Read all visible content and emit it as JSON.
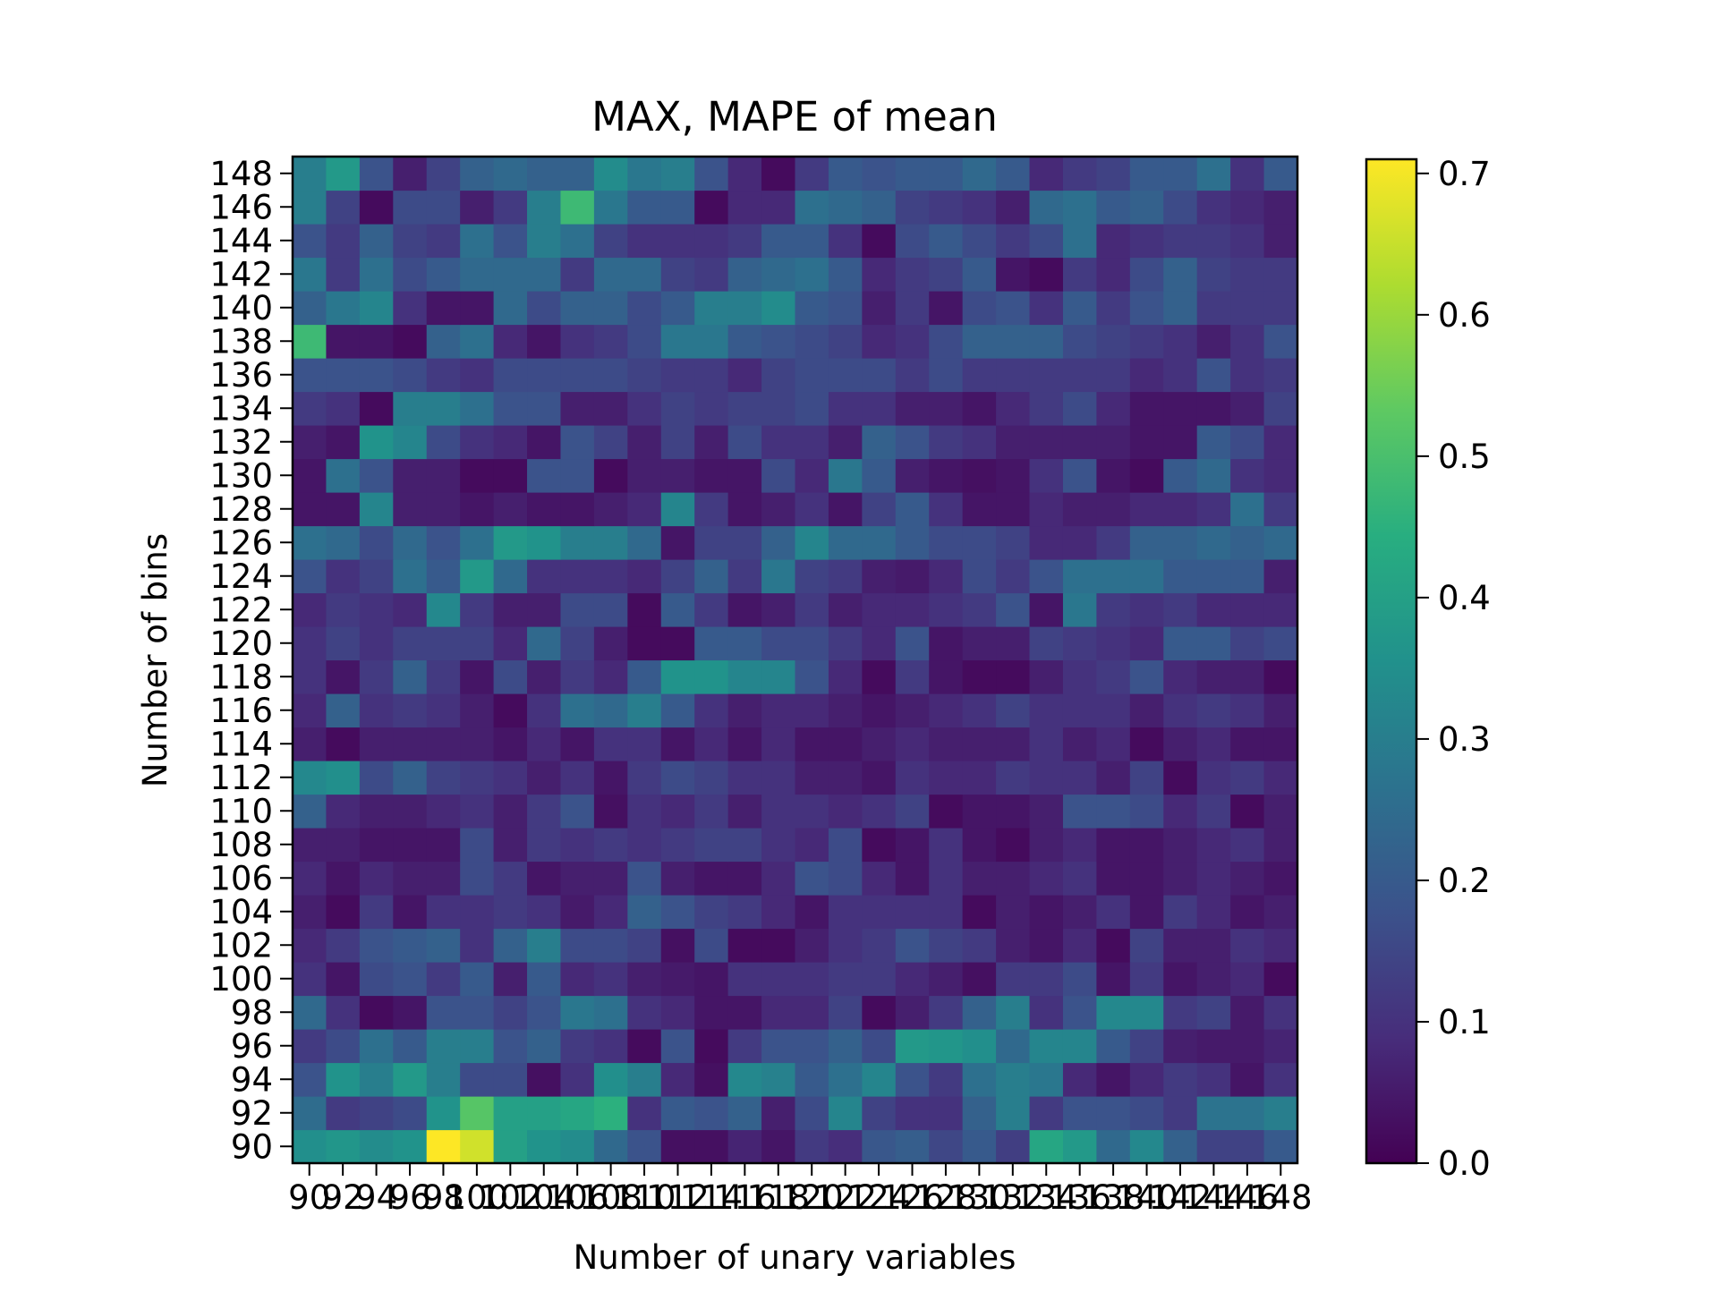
{
  "chart_data": {
    "type": "heatmap",
    "title": "MAX, MAPE of mean",
    "xlabel": "Number of unary variables",
    "ylabel": "Number of bins",
    "x": [
      90,
      92,
      94,
      96,
      98,
      100,
      102,
      104,
      106,
      108,
      110,
      112,
      114,
      116,
      118,
      120,
      122,
      124,
      126,
      128,
      130,
      132,
      134,
      136,
      138,
      140,
      142,
      144,
      146,
      148
    ],
    "y": [
      90,
      92,
      94,
      96,
      98,
      100,
      102,
      104,
      106,
      108,
      110,
      112,
      114,
      116,
      118,
      120,
      122,
      124,
      126,
      128,
      130,
      132,
      134,
      136,
      138,
      140,
      142,
      144,
      146,
      148
    ],
    "colorbar": {
      "min": 0.0,
      "max": 0.71,
      "ticks": [
        "0.0",
        "0.1",
        "0.2",
        "0.3",
        "0.4",
        "0.5",
        "0.6",
        "0.7"
      ],
      "colormap": "viridis"
    },
    "values": [
      [
        0.35,
        0.37,
        0.34,
        0.36,
        0.71,
        0.66,
        0.4,
        0.36,
        0.34,
        0.24,
        0.18,
        0.03,
        0.03,
        0.07,
        0.04,
        0.12,
        0.09,
        0.19,
        0.21,
        0.15,
        0.2,
        0.13,
        0.42,
        0.38,
        0.24,
        0.33,
        0.22,
        0.14,
        0.14,
        0.2
      ],
      [
        0.25,
        0.12,
        0.14,
        0.16,
        0.36,
        0.52,
        0.4,
        0.4,
        0.42,
        0.45,
        0.1,
        0.2,
        0.18,
        0.22,
        0.06,
        0.16,
        0.32,
        0.14,
        0.1,
        0.1,
        0.22,
        0.3,
        0.12,
        0.18,
        0.18,
        0.16,
        0.12,
        0.27,
        0.27,
        0.3
      ],
      [
        0.18,
        0.36,
        0.3,
        0.38,
        0.3,
        0.16,
        0.16,
        0.03,
        0.1,
        0.35,
        0.3,
        0.08,
        0.03,
        0.33,
        0.31,
        0.2,
        0.26,
        0.32,
        0.18,
        0.12,
        0.26,
        0.3,
        0.28,
        0.08,
        0.04,
        0.08,
        0.12,
        0.1,
        0.04,
        0.1
      ],
      [
        0.12,
        0.16,
        0.26,
        0.2,
        0.3,
        0.3,
        0.18,
        0.22,
        0.12,
        0.1,
        0.02,
        0.18,
        0.02,
        0.12,
        0.18,
        0.18,
        0.22,
        0.16,
        0.38,
        0.37,
        0.35,
        0.24,
        0.32,
        0.32,
        0.2,
        0.14,
        0.06,
        0.05,
        0.05,
        0.07
      ],
      [
        0.24,
        0.1,
        0.02,
        0.04,
        0.18,
        0.18,
        0.14,
        0.18,
        0.28,
        0.26,
        0.1,
        0.08,
        0.04,
        0.04,
        0.08,
        0.08,
        0.14,
        0.02,
        0.06,
        0.12,
        0.22,
        0.3,
        0.1,
        0.18,
        0.33,
        0.33,
        0.12,
        0.14,
        0.05,
        0.1
      ],
      [
        0.1,
        0.04,
        0.16,
        0.18,
        0.12,
        0.2,
        0.06,
        0.2,
        0.08,
        0.1,
        0.06,
        0.05,
        0.04,
        0.1,
        0.1,
        0.1,
        0.12,
        0.12,
        0.08,
        0.06,
        0.03,
        0.12,
        0.12,
        0.16,
        0.04,
        0.12,
        0.04,
        0.06,
        0.08,
        0.02
      ],
      [
        0.08,
        0.12,
        0.18,
        0.2,
        0.22,
        0.1,
        0.22,
        0.3,
        0.16,
        0.16,
        0.14,
        0.03,
        0.16,
        0.02,
        0.02,
        0.06,
        0.1,
        0.12,
        0.18,
        0.14,
        0.12,
        0.06,
        0.04,
        0.08,
        0.02,
        0.14,
        0.06,
        0.06,
        0.1,
        0.08
      ],
      [
        0.06,
        0.02,
        0.12,
        0.04,
        0.1,
        0.1,
        0.12,
        0.1,
        0.05,
        0.08,
        0.22,
        0.18,
        0.14,
        0.12,
        0.08,
        0.04,
        0.1,
        0.1,
        0.1,
        0.1,
        0.02,
        0.06,
        0.04,
        0.06,
        0.1,
        0.04,
        0.12,
        0.08,
        0.04,
        0.06
      ],
      [
        0.08,
        0.04,
        0.08,
        0.06,
        0.06,
        0.16,
        0.12,
        0.04,
        0.06,
        0.06,
        0.18,
        0.06,
        0.04,
        0.04,
        0.08,
        0.18,
        0.16,
        0.08,
        0.04,
        0.1,
        0.06,
        0.06,
        0.08,
        0.1,
        0.04,
        0.04,
        0.06,
        0.08,
        0.06,
        0.04
      ],
      [
        0.06,
        0.06,
        0.04,
        0.04,
        0.04,
        0.16,
        0.06,
        0.12,
        0.1,
        0.12,
        0.1,
        0.12,
        0.14,
        0.14,
        0.1,
        0.08,
        0.16,
        0.02,
        0.04,
        0.1,
        0.04,
        0.02,
        0.06,
        0.08,
        0.04,
        0.04,
        0.06,
        0.08,
        0.1,
        0.06
      ],
      [
        0.22,
        0.08,
        0.06,
        0.06,
        0.08,
        0.1,
        0.06,
        0.12,
        0.18,
        0.03,
        0.1,
        0.08,
        0.12,
        0.06,
        0.1,
        0.1,
        0.08,
        0.1,
        0.14,
        0.02,
        0.04,
        0.04,
        0.06,
        0.18,
        0.18,
        0.16,
        0.08,
        0.12,
        0.02,
        0.06
      ],
      [
        0.33,
        0.35,
        0.16,
        0.22,
        0.14,
        0.12,
        0.1,
        0.06,
        0.1,
        0.04,
        0.12,
        0.16,
        0.14,
        0.1,
        0.1,
        0.06,
        0.06,
        0.04,
        0.1,
        0.08,
        0.08,
        0.12,
        0.1,
        0.1,
        0.06,
        0.14,
        0.02,
        0.1,
        0.12,
        0.08
      ],
      [
        0.06,
        0.02,
        0.06,
        0.06,
        0.06,
        0.06,
        0.04,
        0.08,
        0.04,
        0.1,
        0.1,
        0.04,
        0.08,
        0.04,
        0.08,
        0.04,
        0.04,
        0.06,
        0.08,
        0.06,
        0.06,
        0.06,
        0.1,
        0.06,
        0.08,
        0.02,
        0.06,
        0.08,
        0.04,
        0.04
      ],
      [
        0.08,
        0.22,
        0.1,
        0.12,
        0.1,
        0.06,
        0.02,
        0.1,
        0.26,
        0.24,
        0.3,
        0.2,
        0.1,
        0.06,
        0.08,
        0.08,
        0.06,
        0.04,
        0.06,
        0.08,
        0.1,
        0.14,
        0.1,
        0.1,
        0.1,
        0.06,
        0.1,
        0.12,
        0.1,
        0.06
      ],
      [
        0.1,
        0.04,
        0.12,
        0.22,
        0.12,
        0.04,
        0.16,
        0.06,
        0.12,
        0.08,
        0.2,
        0.36,
        0.36,
        0.32,
        0.32,
        0.18,
        0.08,
        0.02,
        0.12,
        0.04,
        0.02,
        0.02,
        0.06,
        0.1,
        0.12,
        0.18,
        0.08,
        0.06,
        0.06,
        0.02
      ],
      [
        0.1,
        0.14,
        0.1,
        0.14,
        0.14,
        0.14,
        0.08,
        0.24,
        0.14,
        0.06,
        0.02,
        0.02,
        0.2,
        0.2,
        0.16,
        0.16,
        0.12,
        0.08,
        0.18,
        0.04,
        0.06,
        0.06,
        0.14,
        0.12,
        0.1,
        0.08,
        0.2,
        0.2,
        0.14,
        0.16
      ],
      [
        0.08,
        0.12,
        0.1,
        0.08,
        0.33,
        0.12,
        0.06,
        0.06,
        0.16,
        0.16,
        0.02,
        0.2,
        0.12,
        0.04,
        0.06,
        0.12,
        0.06,
        0.08,
        0.08,
        0.1,
        0.12,
        0.18,
        0.04,
        0.28,
        0.12,
        0.1,
        0.12,
        0.08,
        0.08,
        0.08
      ],
      [
        0.18,
        0.1,
        0.14,
        0.26,
        0.2,
        0.38,
        0.24,
        0.1,
        0.1,
        0.1,
        0.08,
        0.14,
        0.22,
        0.12,
        0.28,
        0.14,
        0.12,
        0.06,
        0.05,
        0.08,
        0.16,
        0.12,
        0.18,
        0.26,
        0.26,
        0.26,
        0.2,
        0.2,
        0.2,
        0.06
      ],
      [
        0.26,
        0.24,
        0.16,
        0.24,
        0.18,
        0.26,
        0.38,
        0.36,
        0.3,
        0.3,
        0.24,
        0.04,
        0.14,
        0.14,
        0.22,
        0.32,
        0.24,
        0.24,
        0.2,
        0.16,
        0.16,
        0.14,
        0.08,
        0.08,
        0.12,
        0.22,
        0.22,
        0.24,
        0.22,
        0.24
      ],
      [
        0.04,
        0.04,
        0.32,
        0.06,
        0.06,
        0.04,
        0.06,
        0.04,
        0.04,
        0.06,
        0.08,
        0.32,
        0.12,
        0.04,
        0.06,
        0.1,
        0.04,
        0.14,
        0.2,
        0.1,
        0.04,
        0.04,
        0.08,
        0.06,
        0.06,
        0.08,
        0.08,
        0.1,
        0.26,
        0.12
      ],
      [
        0.04,
        0.26,
        0.18,
        0.06,
        0.06,
        0.02,
        0.02,
        0.18,
        0.18,
        0.02,
        0.06,
        0.06,
        0.04,
        0.04,
        0.16,
        0.08,
        0.28,
        0.2,
        0.06,
        0.04,
        0.03,
        0.04,
        0.1,
        0.18,
        0.04,
        0.02,
        0.2,
        0.24,
        0.1,
        0.08
      ],
      [
        0.06,
        0.04,
        0.36,
        0.32,
        0.16,
        0.1,
        0.08,
        0.04,
        0.18,
        0.14,
        0.06,
        0.14,
        0.06,
        0.16,
        0.1,
        0.1,
        0.06,
        0.22,
        0.18,
        0.12,
        0.1,
        0.06,
        0.06,
        0.06,
        0.06,
        0.04,
        0.04,
        0.2,
        0.16,
        0.08
      ],
      [
        0.12,
        0.1,
        0.02,
        0.3,
        0.3,
        0.26,
        0.18,
        0.18,
        0.06,
        0.06,
        0.1,
        0.14,
        0.12,
        0.14,
        0.14,
        0.16,
        0.1,
        0.1,
        0.06,
        0.06,
        0.04,
        0.08,
        0.12,
        0.16,
        0.08,
        0.04,
        0.04,
        0.04,
        0.06,
        0.14
      ],
      [
        0.18,
        0.18,
        0.18,
        0.16,
        0.12,
        0.1,
        0.16,
        0.16,
        0.16,
        0.16,
        0.14,
        0.12,
        0.12,
        0.08,
        0.14,
        0.16,
        0.16,
        0.16,
        0.12,
        0.16,
        0.12,
        0.12,
        0.12,
        0.12,
        0.12,
        0.08,
        0.1,
        0.18,
        0.1,
        0.12
      ],
      [
        0.48,
        0.04,
        0.04,
        0.02,
        0.22,
        0.26,
        0.08,
        0.04,
        0.1,
        0.12,
        0.16,
        0.28,
        0.28,
        0.2,
        0.18,
        0.16,
        0.14,
        0.08,
        0.1,
        0.16,
        0.22,
        0.22,
        0.22,
        0.16,
        0.14,
        0.12,
        0.1,
        0.06,
        0.1,
        0.18
      ],
      [
        0.22,
        0.28,
        0.32,
        0.1,
        0.04,
        0.04,
        0.24,
        0.16,
        0.22,
        0.22,
        0.16,
        0.2,
        0.3,
        0.3,
        0.34,
        0.2,
        0.18,
        0.06,
        0.12,
        0.04,
        0.16,
        0.18,
        0.1,
        0.2,
        0.12,
        0.18,
        0.22,
        0.12,
        0.12,
        0.12
      ],
      [
        0.28,
        0.12,
        0.26,
        0.16,
        0.2,
        0.24,
        0.24,
        0.24,
        0.12,
        0.24,
        0.24,
        0.14,
        0.12,
        0.22,
        0.24,
        0.26,
        0.2,
        0.08,
        0.12,
        0.14,
        0.2,
        0.04,
        0.02,
        0.12,
        0.08,
        0.16,
        0.22,
        0.14,
        0.12,
        0.12
      ],
      [
        0.18,
        0.12,
        0.22,
        0.14,
        0.12,
        0.26,
        0.18,
        0.3,
        0.26,
        0.14,
        0.1,
        0.1,
        0.1,
        0.12,
        0.2,
        0.2,
        0.1,
        0.02,
        0.16,
        0.2,
        0.16,
        0.12,
        0.16,
        0.26,
        0.08,
        0.1,
        0.12,
        0.12,
        0.1,
        0.06
      ],
      [
        0.3,
        0.14,
        0.02,
        0.16,
        0.16,
        0.06,
        0.12,
        0.3,
        0.48,
        0.28,
        0.2,
        0.2,
        0.02,
        0.08,
        0.08,
        0.26,
        0.24,
        0.22,
        0.14,
        0.12,
        0.1,
        0.06,
        0.24,
        0.26,
        0.2,
        0.22,
        0.16,
        0.1,
        0.08,
        0.06
      ],
      [
        0.3,
        0.38,
        0.18,
        0.06,
        0.14,
        0.22,
        0.24,
        0.22,
        0.22,
        0.34,
        0.28,
        0.3,
        0.18,
        0.08,
        0.02,
        0.12,
        0.2,
        0.18,
        0.2,
        0.2,
        0.24,
        0.2,
        0.08,
        0.12,
        0.14,
        0.2,
        0.2,
        0.26,
        0.1,
        0.2
      ]
    ]
  }
}
